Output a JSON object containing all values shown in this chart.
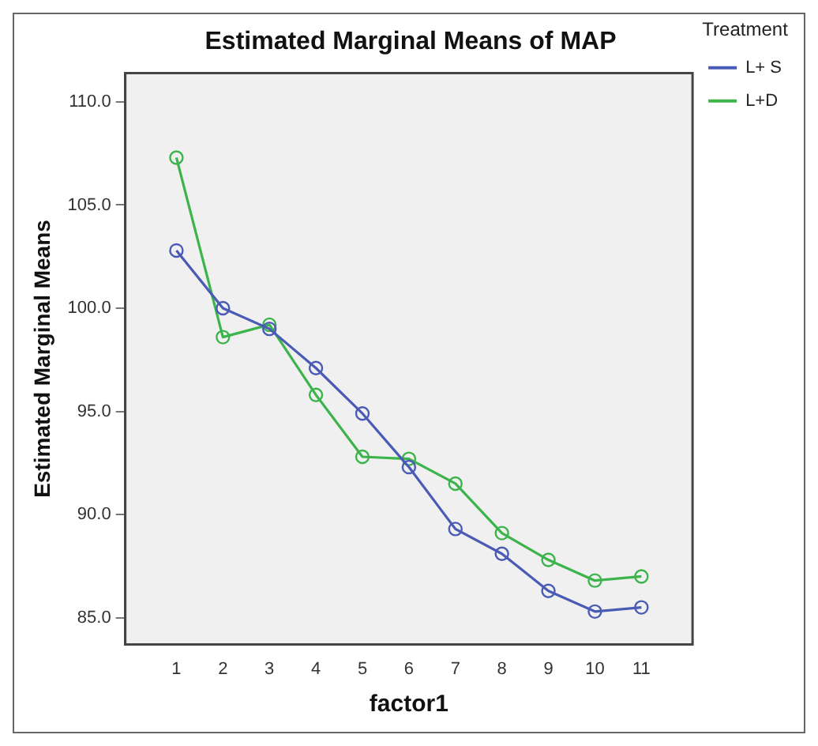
{
  "chart_data": {
    "type": "line",
    "title": "Estimated Marginal Means of MAP",
    "xlabel": "factor1",
    "ylabel": "Estimated Marginal Means",
    "legend_title": "Treatment",
    "x": [
      1,
      2,
      3,
      4,
      5,
      6,
      7,
      8,
      9,
      10,
      11
    ],
    "series": [
      {
        "name": "L+ S",
        "color": "#4a5bb5",
        "values": [
          102.8,
          100.0,
          99.0,
          97.1,
          94.9,
          92.3,
          89.3,
          88.1,
          86.3,
          85.3,
          85.5
        ]
      },
      {
        "name": "L+D",
        "color": "#3cb44b",
        "values": [
          107.3,
          98.6,
          99.2,
          95.8,
          92.8,
          92.7,
          91.5,
          89.1,
          87.8,
          86.8,
          87.0
        ]
      }
    ],
    "xlim": [
      -0.1,
      12.1
    ],
    "xticks": [
      1,
      2,
      3,
      4,
      5,
      6,
      7,
      8,
      9,
      10,
      11
    ],
    "ylim": [
      83.7,
      111.4
    ],
    "yticks": [
      {
        "value": 85,
        "label": "85.0"
      },
      {
        "value": 90,
        "label": "90.0"
      },
      {
        "value": 95,
        "label": "95.0"
      },
      {
        "value": 100,
        "label": "100.0"
      },
      {
        "value": 105,
        "label": "105.0"
      },
      {
        "value": 110,
        "label": "110.0"
      }
    ],
    "grid": false,
    "legend": "top right",
    "marker": "circle",
    "line_style": "solid"
  }
}
